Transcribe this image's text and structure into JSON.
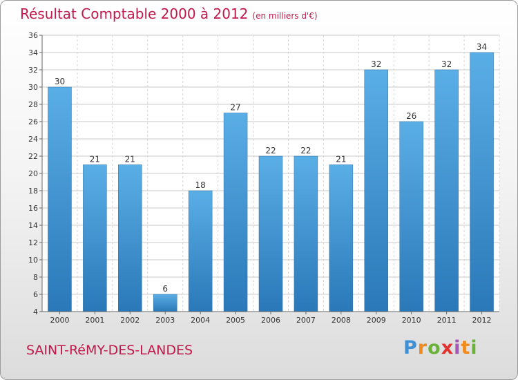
{
  "header": {
    "title": "Résultat Comptable 2000 à 2012",
    "subtitle": "(en milliers d'€)"
  },
  "footer": {
    "commune": "SAINT-RéMY-DES-LANDES",
    "logo": "Proxiti"
  },
  "colors": {
    "title": "#c0184a",
    "bar_top": "#5aaee6",
    "bar_bottom": "#2a78b8",
    "grid": "#c8c8c8"
  },
  "chart_data": {
    "type": "bar",
    "title": "Résultat Comptable 2000 à 2012",
    "subtitle": "(en milliers d'€)",
    "categories": [
      "2000",
      "2001",
      "2002",
      "2003",
      "2004",
      "2005",
      "2006",
      "2007",
      "2008",
      "2009",
      "2010",
      "2011",
      "2012"
    ],
    "values": [
      30,
      21,
      21,
      6,
      18,
      27,
      22,
      22,
      21,
      32,
      26,
      32,
      34
    ],
    "ylim": [
      4,
      36
    ],
    "yticks": [
      4,
      6,
      8,
      10,
      12,
      14,
      16,
      18,
      20,
      22,
      24,
      26,
      28,
      30,
      32,
      34,
      36
    ],
    "grid": true,
    "data_labels": true
  }
}
